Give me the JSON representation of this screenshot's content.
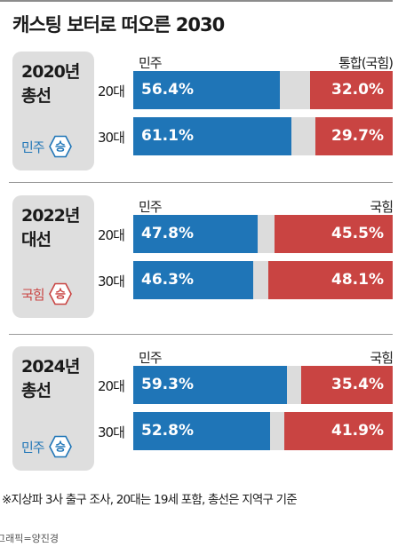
{
  "title": "캐스팅 보터로 떠오른 2030",
  "colors": {
    "democratic": "#1f75b7",
    "conservative": "#c94442",
    "gap": "#dcdcdc",
    "panel": "#dedede"
  },
  "chart_data": [
    {
      "type": "bar",
      "stacked": "horizontal",
      "panel_title": "2020년\n총선",
      "winner_party": "민주",
      "winner_label": "승",
      "left_party": "민주",
      "right_party": "통합(국힘)",
      "categories": [
        "20대",
        "30대"
      ],
      "series": [
        {
          "name": "민주",
          "values": [
            56.4,
            61.1
          ],
          "labels": [
            "56.4%",
            "61.1%"
          ]
        },
        {
          "name": "통합(국힘)",
          "values": [
            32.0,
            29.7
          ],
          "labels": [
            "32.0%",
            "29.7%"
          ]
        }
      ]
    },
    {
      "type": "bar",
      "stacked": "horizontal",
      "panel_title": "2022년\n대선",
      "winner_party": "국힘",
      "winner_label": "승",
      "left_party": "민주",
      "right_party": "국힘",
      "categories": [
        "20대",
        "30대"
      ],
      "series": [
        {
          "name": "민주",
          "values": [
            47.8,
            46.3
          ],
          "labels": [
            "47.8%",
            "46.3%"
          ]
        },
        {
          "name": "국힘",
          "values": [
            45.5,
            48.1
          ],
          "labels": [
            "45.5%",
            "48.1%"
          ]
        }
      ]
    },
    {
      "type": "bar",
      "stacked": "horizontal",
      "panel_title": "2024년\n총선",
      "winner_party": "민주",
      "winner_label": "승",
      "left_party": "민주",
      "right_party": "국힘",
      "categories": [
        "20대",
        "30대"
      ],
      "series": [
        {
          "name": "민주",
          "values": [
            59.3,
            52.8
          ],
          "labels": [
            "59.3%",
            "52.8%"
          ]
        },
        {
          "name": "국힘",
          "values": [
            35.4,
            41.9
          ],
          "labels": [
            "35.4%",
            "41.9%"
          ]
        }
      ]
    }
  ],
  "note": "※지상파 3사 출구 조사, 20대는 19세 포함, 총선은 지역구 기준",
  "credit": "그래픽=양진경"
}
